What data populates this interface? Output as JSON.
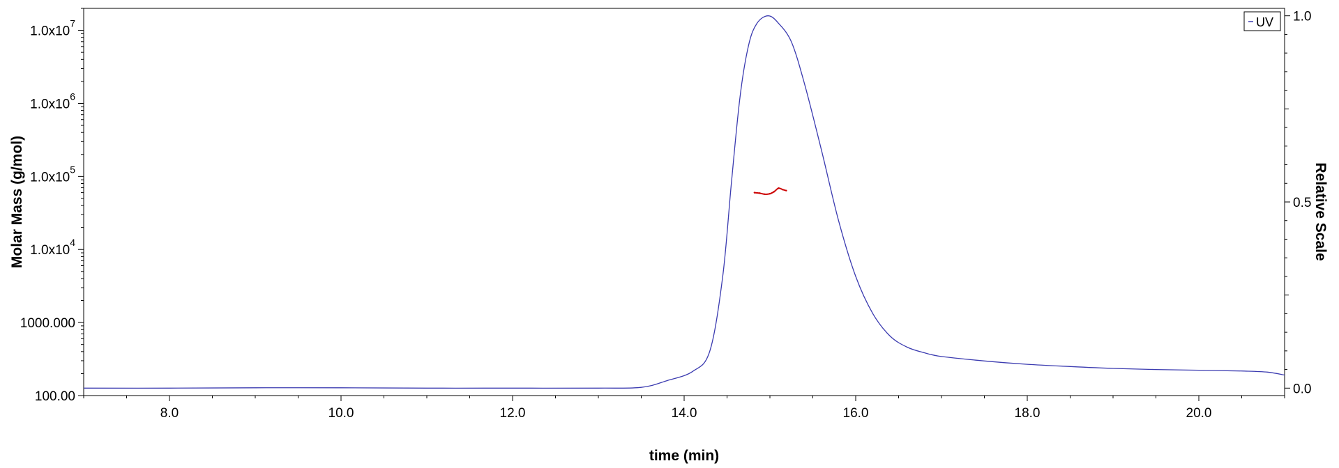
{
  "chart_data": {
    "type": "line",
    "title": "",
    "xlabel": "time (min)",
    "ylabel_left": "Molar Mass (g/mol)",
    "ylabel_right": "Relative Scale",
    "xlim": [
      7.0,
      21.0
    ],
    "ylim_left": [
      100,
      20000000
    ],
    "y_left_scale": "log",
    "ylim_right": [
      -0.02,
      1.02
    ],
    "x_ticks": [
      {
        "value": 8.0,
        "label": "8.0"
      },
      {
        "value": 10.0,
        "label": "10.0"
      },
      {
        "value": 12.0,
        "label": "12.0"
      },
      {
        "value": 14.0,
        "label": "14.0"
      },
      {
        "value": 16.0,
        "label": "16.0"
      },
      {
        "value": 18.0,
        "label": "18.0"
      },
      {
        "value": 20.0,
        "label": "20.0"
      }
    ],
    "y_left_ticks": [
      {
        "value": 100,
        "base": "100.00",
        "exp": ""
      },
      {
        "value": 1000,
        "base": "1000.000",
        "exp": ""
      },
      {
        "value": 10000,
        "base": "1.0x10",
        "exp": "4"
      },
      {
        "value": 100000,
        "base": "1.0x10",
        "exp": "5"
      },
      {
        "value": 1000000,
        "base": "1.0x10",
        "exp": "6"
      },
      {
        "value": 10000000,
        "base": "1.0x10",
        "exp": "7"
      }
    ],
    "y_right_ticks": [
      {
        "value": 0.0,
        "label": "0.0"
      },
      {
        "value": 0.5,
        "label": "0.5"
      },
      {
        "value": 1.0,
        "label": "1.0"
      }
    ],
    "grid": false,
    "legend": {
      "position": "top-right",
      "entries": [
        {
          "label": "UV",
          "color": "#3b3bb0"
        }
      ]
    },
    "series": [
      {
        "name": "UV",
        "axis": "right",
        "color": "#3b3bb0",
        "points": [
          [
            7.0,
            0.0
          ],
          [
            8.0,
            0.0
          ],
          [
            9.0,
            0.001
          ],
          [
            10.0,
            0.001
          ],
          [
            11.0,
            0.0
          ],
          [
            12.0,
            0.0
          ],
          [
            13.0,
            0.0
          ],
          [
            13.5,
            0.002
          ],
          [
            13.8,
            0.02
          ],
          [
            14.1,
            0.045
          ],
          [
            14.3,
            0.1
          ],
          [
            14.45,
            0.3
          ],
          [
            14.55,
            0.55
          ],
          [
            14.65,
            0.78
          ],
          [
            14.75,
            0.92
          ],
          [
            14.85,
            0.98
          ],
          [
            14.98,
            1.0
          ],
          [
            15.1,
            0.98
          ],
          [
            15.25,
            0.93
          ],
          [
            15.4,
            0.82
          ],
          [
            15.6,
            0.64
          ],
          [
            15.8,
            0.45
          ],
          [
            16.0,
            0.3
          ],
          [
            16.2,
            0.2
          ],
          [
            16.4,
            0.14
          ],
          [
            16.6,
            0.11
          ],
          [
            16.8,
            0.095
          ],
          [
            17.0,
            0.085
          ],
          [
            17.5,
            0.073
          ],
          [
            18.0,
            0.064
          ],
          [
            18.5,
            0.058
          ],
          [
            19.0,
            0.053
          ],
          [
            19.5,
            0.05
          ],
          [
            20.0,
            0.048
          ],
          [
            20.5,
            0.046
          ],
          [
            20.8,
            0.043
          ],
          [
            21.0,
            0.035
          ]
        ]
      },
      {
        "name": "Molar Mass",
        "axis": "left",
        "color": "#cc0000",
        "points": [
          [
            14.82,
            60000
          ],
          [
            14.88,
            59000
          ],
          [
            14.94,
            57000
          ],
          [
            15.0,
            58000
          ],
          [
            15.05,
            62000
          ],
          [
            15.1,
            69000
          ],
          [
            15.15,
            66000
          ],
          [
            15.19,
            64000
          ]
        ]
      }
    ]
  }
}
